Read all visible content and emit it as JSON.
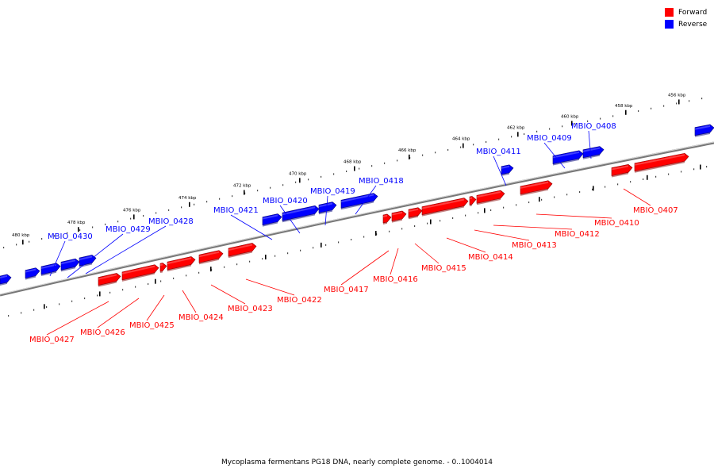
{
  "legend": {
    "forward": {
      "label": "Forward",
      "color": "#ff0000"
    },
    "reverse": {
      "label": "Reverse",
      "color": "#0000ff"
    }
  },
  "caption": "Mycoplasma fermentans PG18 DNA, nearly complete genome. - 0..1004014",
  "ticks": [
    "456 kbp",
    "458 kbp",
    "460 kbp",
    "462 kbp",
    "464 kbp",
    "466 kbp",
    "468 kbp",
    "470 kbp",
    "472 kbp",
    "474 kbp",
    "476 kbp",
    "478 kbp",
    "480 kbp"
  ],
  "genes": {
    "reverse": [
      "MBIO_0408",
      "MBIO_0409",
      "MBIO_0411",
      "MBIO_0418",
      "MBIO_0419",
      "MBIO_0420",
      "MBIO_0421",
      "MBIO_0428",
      "MBIO_0429",
      "MBIO_0430"
    ],
    "forward": [
      "MBIO_0407",
      "MBIO_0410",
      "MBIO_0412",
      "MBIO_0413",
      "MBIO_0414",
      "MBIO_0415",
      "MBIO_0416",
      "MBIO_0417",
      "MBIO_0422",
      "MBIO_0423",
      "MBIO_0424",
      "MBIO_0425",
      "MBIO_0426",
      "MBIO_0427"
    ]
  }
}
